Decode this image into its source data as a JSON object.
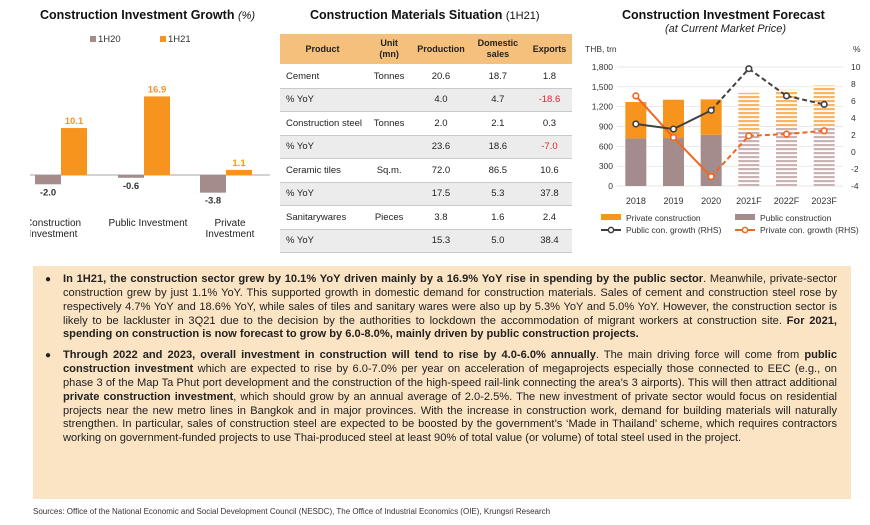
{
  "growth": {
    "title": "Construction Investment Growth",
    "unit": "(%)",
    "legend": [
      "1H20",
      "1H21"
    ],
    "colors": {
      "1H20": "#a48c8c",
      "1H21": "#f7941d"
    },
    "chart_data": {
      "type": "bar",
      "categories": [
        "Construction Investment",
        "Public Investment",
        "Private Investment"
      ],
      "category_lines": [
        [
          "Construction",
          "Investment"
        ],
        [
          "Public Investment"
        ],
        [
          "Private",
          "Investment"
        ]
      ],
      "series": [
        {
          "name": "1H20",
          "values": [
            -2.0,
            -0.6,
            -3.8
          ]
        },
        {
          "name": "1H21",
          "values": [
            10.1,
            16.9,
            1.1
          ]
        }
      ],
      "value_labels": [
        [
          "-2.0",
          "-0.6",
          "-3.8"
        ],
        [
          "10.1",
          "16.9",
          "1.1"
        ]
      ]
    }
  },
  "materials": {
    "title": "Construction Materials Situation",
    "period": "(1H21)",
    "headers": [
      "Product",
      "Unit\n(mn)",
      "Production",
      "Domestic\nsales",
      "Exports"
    ],
    "rows": [
      {
        "product": "Cement",
        "unit": "Tonnes",
        "production": "20.6",
        "domestic": "18.7",
        "exports": "1.8",
        "neg": false
      },
      {
        "product": "% YoY",
        "unit": "",
        "production": "4.0",
        "domestic": "4.7",
        "exports": "-18.6",
        "neg": true
      },
      {
        "product": "Construction steel",
        "unit": "Tonnes",
        "production": "2.0",
        "domestic": "2.1",
        "exports": "0.3",
        "neg": false
      },
      {
        "product": "% YoY",
        "unit": "",
        "production": "23.6",
        "domestic": "18.6",
        "exports": "-7.0",
        "neg": true
      },
      {
        "product": "Ceramic tiles",
        "unit": "Sq.m.",
        "production": "72.0",
        "domestic": "86.5",
        "exports": "10.6",
        "neg": false
      },
      {
        "product": "% YoY",
        "unit": "",
        "production": "17.5",
        "domestic": "5.3",
        "exports": "37.8",
        "neg": false
      },
      {
        "product": "Sanitarywares",
        "unit": "Pieces",
        "production": "3.8",
        "domestic": "1.6",
        "exports": "2.4",
        "neg": false
      },
      {
        "product": "% YoY",
        "unit": "",
        "production": "15.3",
        "domestic": "5.0",
        "exports": "38.4",
        "neg": false
      }
    ]
  },
  "forecast": {
    "title": "Construction Investment Forecast",
    "subtitle": "(at Current Market Price)",
    "left_unit": "THB, trn",
    "right_unit": "%",
    "left_ticks": [
      "0",
      "300",
      "600",
      "900",
      "1,200",
      "1,500",
      "1,800"
    ],
    "right_ticks": [
      "-4",
      "-2",
      "0",
      "2",
      "4",
      "6",
      "8",
      "10"
    ],
    "colors": {
      "private": "#f7941d",
      "public": "#a48c8c",
      "public_line": "#404040",
      "private_line": "#f26522"
    },
    "legend": [
      "Private construction",
      "Public construction",
      "Public con. growth (RHS)",
      "Private con. growth (RHS)"
    ],
    "chart_data": {
      "type": "bar",
      "categories": [
        "2018",
        "2019",
        "2020",
        "2021F",
        "2022F",
        "2023F"
      ],
      "ylim": [
        0,
        1800
      ],
      "y2lim": [
        -4,
        10
      ],
      "series": [
        {
          "name": "Public construction",
          "values": [
            720,
            725,
            775,
            850,
            885,
            920
          ]
        },
        {
          "name": "Private construction",
          "values": [
            550,
            580,
            535,
            560,
            570,
            600
          ]
        },
        {
          "name": "Public con. growth (RHS)",
          "axis": "right",
          "values": [
            3.3,
            2.7,
            4.9,
            9.8,
            6.6,
            5.6
          ]
        },
        {
          "name": "Private con. growth (RHS)",
          "axis": "right",
          "values": [
            6.6,
            1.7,
            -2.9,
            1.9,
            2.1,
            2.5
          ]
        }
      ]
    }
  },
  "summary": {
    "p1": [
      {
        "t": "In 1H21, the construction sector grew by 10.1% YoY driven mainly by a 16.9% YoY rise in spending by the public sector",
        "b": true
      },
      {
        "t": ". Meanwhile, private-sector construction grew by just 1.1% YoY. This supported growth in domestic demand for construction materials. Sales of cement and construction steel rose by respectively 4.7% YoY and 18.6% YoY, while sales of tiles and sanitary wares were also up by 5.3% YoY and 5.0% YoY. However, the construction sector is likely to be lackluster in 3Q21 due to the decision by the authorities to lockdown the accommodation of migrant workers at construction site. ",
        "b": false
      },
      {
        "t": "For 2021, spending on construction is now forecast to grow by 6.0-8.0%, mainly driven by public construction projects.",
        "b": true
      }
    ],
    "p2": [
      {
        "t": "Through 2022 and 2023, overall investment in construction will tend to rise by 4.0-6.0% annually",
        "b": true
      },
      {
        "t": ". The main driving force will come from ",
        "b": false
      },
      {
        "t": "public construction investment",
        "b": true
      },
      {
        "t": " which are expected to rise by 6.0-7.0% per year on acceleration of megaprojects especially those connected to EEC (e.g., on phase 3 of the Map Ta Phut port development and the construction of the high-speed rail-link connecting the area’s 3 airports). This will then attract additional ",
        "b": false
      },
      {
        "t": "private construction investment",
        "b": true
      },
      {
        "t": ", which should grow by an annual average of 2.0-2.5%. The new investment of private sector would focus on residential projects near the new metro lines in Bangkok and in major provinces. With the increase in construction work, demand for building materials will naturally strengthen. In particular, sales of construction steel are expected to be boosted by the government’s ‘Made in Thailand’ scheme, which requires contractors working on government-funded projects to use Thai-produced steel at least 90% of total value (or volume) of total steel used in the project.",
        "b": false
      }
    ]
  },
  "source": "Sources: Office of the National Economic and Social Development Council (NESDC), The Office of Industrial Economics (OIE), Krungsri Research"
}
